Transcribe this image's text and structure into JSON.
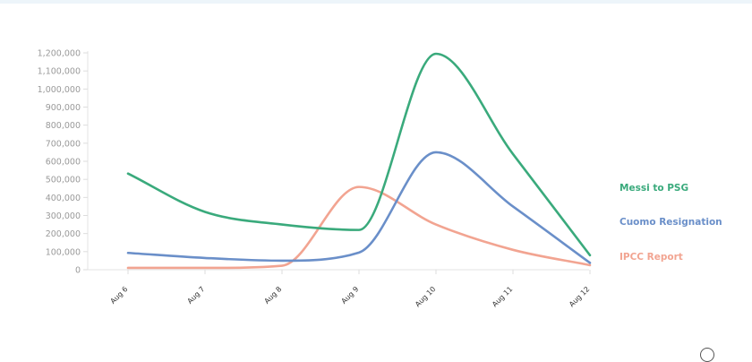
{
  "chart_data": {
    "type": "line",
    "categories": [
      "Aug 6",
      "Aug 7",
      "Aug 8",
      "Aug 9",
      "Aug 10",
      "Aug 11",
      "Aug 12"
    ],
    "ylim": [
      0,
      1200000
    ],
    "yticks": [
      0,
      100000,
      200000,
      300000,
      400000,
      500000,
      600000,
      700000,
      800000,
      900000,
      1000000,
      1100000,
      1200000
    ],
    "ytick_labels": [
      "0",
      "100,000",
      "200,000",
      "300,000",
      "400,000",
      "500,000",
      "600,000",
      "700,000",
      "800,000",
      "900,000",
      "1,000,000",
      "1,100,000",
      "1,200,000"
    ],
    "grid": false,
    "legend_placement": "right, at line ends",
    "series": [
      {
        "name": "Messi to PSG",
        "color": "#3aaa7c",
        "values": [
          532000,
          320000,
          250000,
          220000,
          1195000,
          640000,
          80000
        ]
      },
      {
        "name": "Cuomo Resignation",
        "color": "#6a8fc9",
        "values": [
          93000,
          65000,
          50000,
          95000,
          650000,
          350000,
          38000
        ]
      },
      {
        "name": "IPCC Report",
        "color": "#f2a491",
        "values": [
          10000,
          10000,
          22000,
          458000,
          250000,
          110000,
          25000
        ]
      }
    ]
  },
  "brand": {
    "icon": "logo-icon"
  }
}
